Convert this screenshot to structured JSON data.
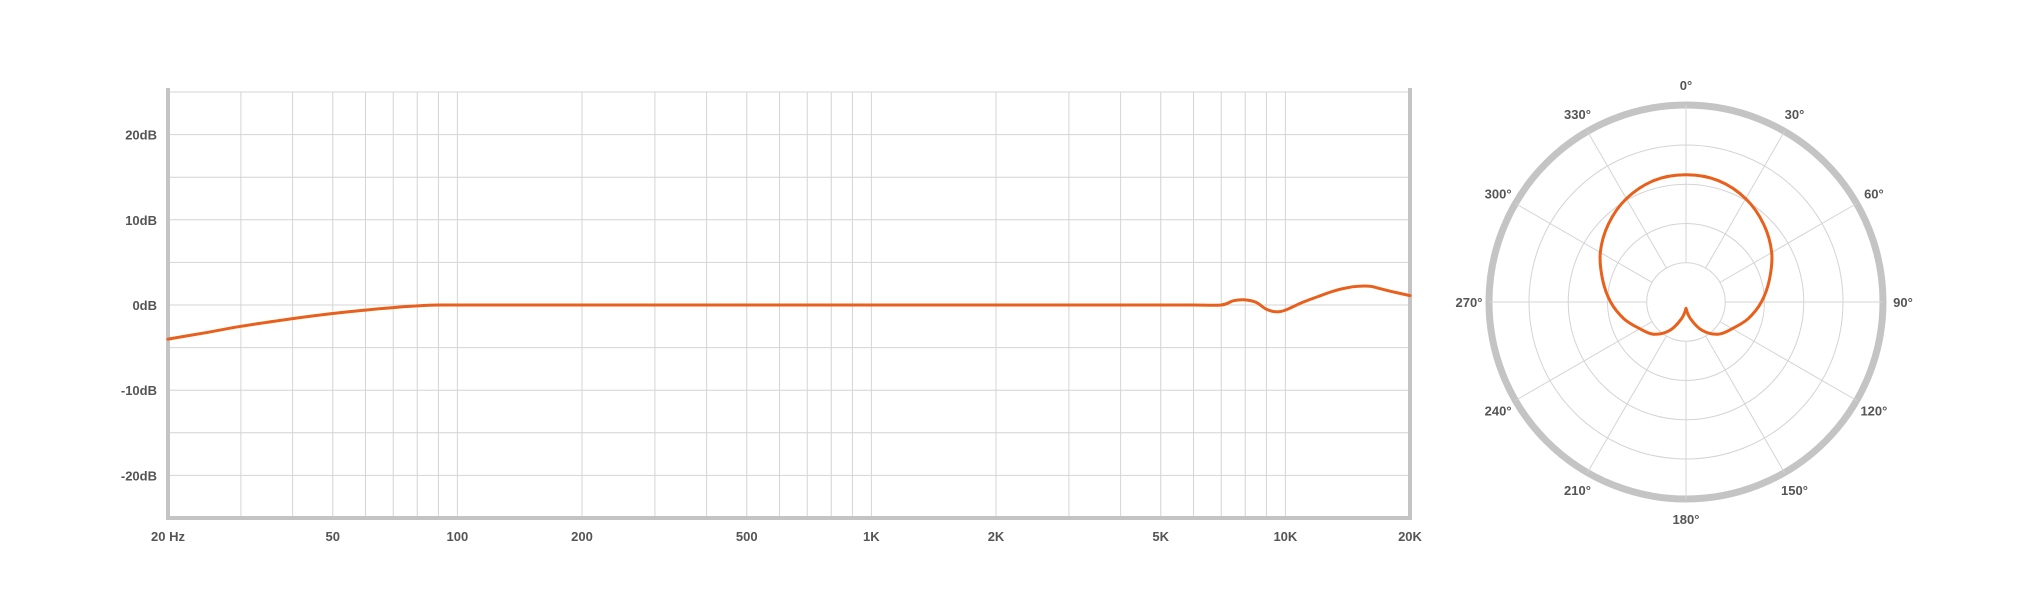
{
  "colors": {
    "curve": "#E8601C",
    "grid": "#d4d4d4",
    "frame": "#c4c4c4",
    "text": "#555555"
  },
  "chart_data": [
    {
      "type": "line",
      "x_scale": "log",
      "xlim": [
        20,
        20000
      ],
      "ylim": [
        -25,
        25
      ],
      "grid": true,
      "x_ticks": [
        {
          "value": 20,
          "label": "20 Hz"
        },
        {
          "value": 50,
          "label": "50"
        },
        {
          "value": 100,
          "label": "100"
        },
        {
          "value": 200,
          "label": "200"
        },
        {
          "value": 500,
          "label": "500"
        },
        {
          "value": 1000,
          "label": "1K"
        },
        {
          "value": 2000,
          "label": "2K"
        },
        {
          "value": 5000,
          "label": "5K"
        },
        {
          "value": 10000,
          "label": "10K"
        },
        {
          "value": 20000,
          "label": "20K"
        }
      ],
      "y_ticks": [
        {
          "value": 20,
          "label": "20dB"
        },
        {
          "value": 10,
          "label": "10dB"
        },
        {
          "value": 0,
          "label": "0dB"
        },
        {
          "value": -10,
          "label": "-10dB"
        },
        {
          "value": -20,
          "label": "-20dB"
        }
      ],
      "series": [
        {
          "x": [
            20,
            25,
            30,
            40,
            50,
            60,
            70,
            80,
            90,
            100,
            150,
            200,
            300,
            500,
            1000,
            2000,
            4000,
            5000,
            6000,
            7000,
            7500,
            8000,
            8500,
            9000,
            9500,
            10000,
            11000,
            12000,
            13000,
            14000,
            15000,
            16000,
            17000,
            18000,
            20000
          ],
          "y": [
            -4.0,
            -3.2,
            -2.5,
            -1.6,
            -1.0,
            -0.6,
            -0.3,
            -0.1,
            0.0,
            0.0,
            0.0,
            0.0,
            0.0,
            0.0,
            0.0,
            0.0,
            0.0,
            0.0,
            0.0,
            0.0,
            0.5,
            0.6,
            0.3,
            -0.5,
            -0.8,
            -0.6,
            0.3,
            1.0,
            1.6,
            2.0,
            2.2,
            2.2,
            1.9,
            1.6,
            1.1
          ]
        }
      ]
    },
    {
      "type": "polar",
      "rlim": [
        0,
        1
      ],
      "grid": true,
      "angle_labels": [
        "0°",
        "30°",
        "60°",
        "90°",
        "120°",
        "150°",
        "180°",
        "210°",
        "240°",
        "270°",
        "300°",
        "330°"
      ],
      "series": [
        {
          "angles_deg": [
            0,
            15,
            30,
            45,
            60,
            75,
            90,
            105,
            120,
            135,
            150,
            165,
            180,
            195,
            210,
            225,
            240,
            255,
            270,
            285,
            300,
            315,
            330,
            345,
            360
          ],
          "r": [
            0.81,
            0.8,
            0.76,
            0.7,
            0.63,
            0.55,
            0.48,
            0.41,
            0.34,
            0.29,
            0.21,
            0.11,
            0.04,
            0.11,
            0.21,
            0.29,
            0.34,
            0.41,
            0.48,
            0.55,
            0.63,
            0.7,
            0.76,
            0.8,
            0.81
          ]
        }
      ]
    }
  ]
}
